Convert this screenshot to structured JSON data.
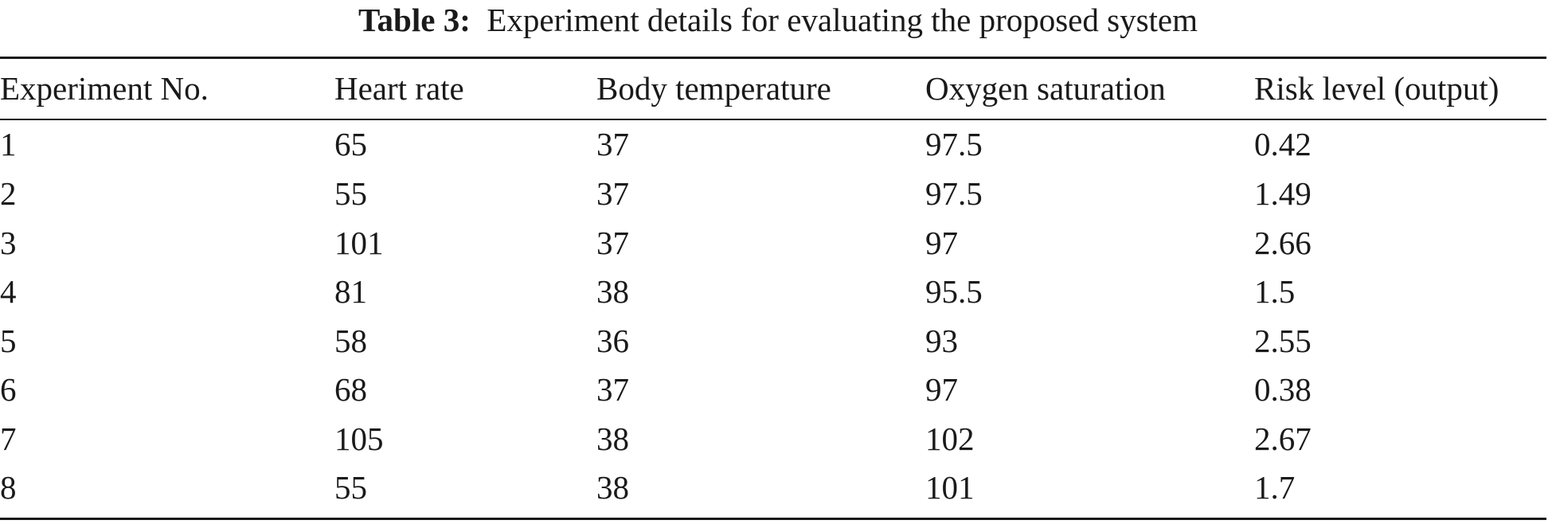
{
  "caption": {
    "label": "Table 3:",
    "text": "Experiment details for evaluating the proposed system"
  },
  "table": {
    "headers": [
      "Experiment No.",
      "Heart rate",
      "Body temperature",
      "Oxygen saturation",
      "Risk level (output)"
    ],
    "rows": [
      [
        "1",
        "65",
        "37",
        "97.5",
        "0.42"
      ],
      [
        "2",
        "55",
        "37",
        "97.5",
        "1.49"
      ],
      [
        "3",
        "101",
        "37",
        "97",
        "2.66"
      ],
      [
        "4",
        "81",
        "38",
        "95.5",
        "1.5"
      ],
      [
        "5",
        "58",
        "36",
        "93",
        "2.55"
      ],
      [
        "6",
        "68",
        "37",
        "97",
        "0.38"
      ],
      [
        "7",
        "105",
        "38",
        "102",
        "2.67"
      ],
      [
        "8",
        "55",
        "38",
        "101",
        "1.7"
      ]
    ]
  }
}
